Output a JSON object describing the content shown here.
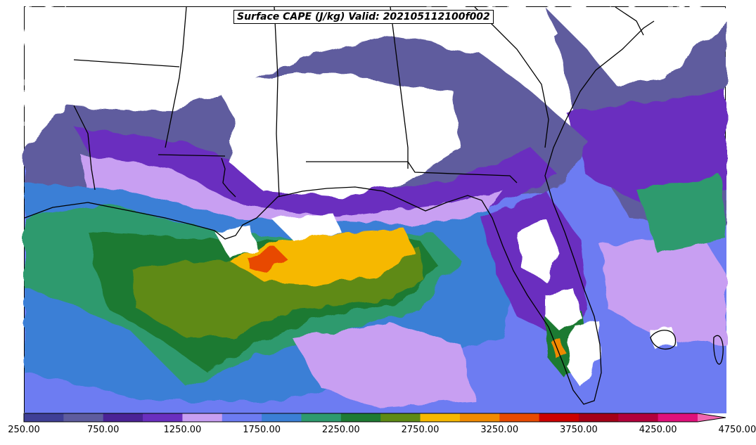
{
  "title": "Surface CAPE (J/kg) Valid: 202105112100f002",
  "colorbar": {
    "tick_labels": [
      "250.00",
      "750.00",
      "1250.00",
      "1750.00",
      "2250.00",
      "2750.00",
      "3250.00",
      "3750.00",
      "4250.00",
      "4750.00"
    ],
    "levels": [
      250,
      500,
      750,
      1000,
      1250,
      1500,
      1750,
      2000,
      2250,
      2500,
      2750,
      3000,
      3250,
      3500,
      3750,
      4000,
      4250,
      4500,
      4750,
      5000
    ],
    "colors": [
      "#3f3f96",
      "#5e5c9e",
      "#4b2396",
      "#6a2fbf",
      "#c89ff2",
      "#6d7cf2",
      "#3b7fd6",
      "#2e9a6e",
      "#1e7a33",
      "#5e8a16",
      "#f6b800",
      "#f08a00",
      "#e84a00",
      "#cc0000",
      "#a50018",
      "#b3003c",
      "#e0107a",
      "#f266b0"
    ],
    "extend": "max"
  },
  "map": {
    "field": "Surface CAPE",
    "units": "J/kg",
    "region": "Gulf of Mexico, Florida and southeastern United States"
  }
}
